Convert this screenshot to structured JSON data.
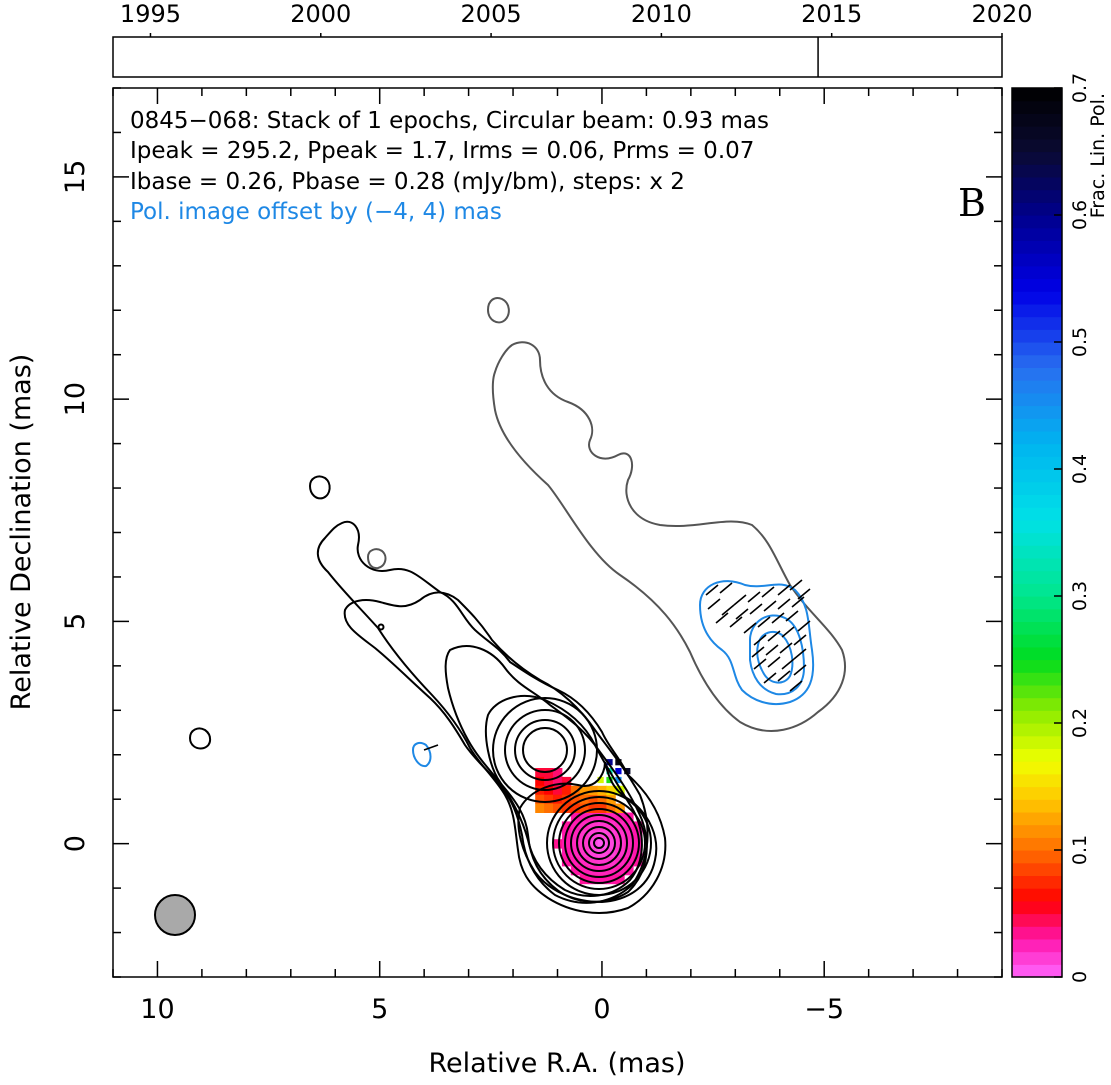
{
  "chart_data": [
    {
      "type": "timeline",
      "x_ticks": [
        "1995",
        "2000",
        "2005",
        "2010",
        "2015",
        "2020"
      ],
      "xlim": [
        1993.9,
        2020
      ],
      "epochs": [
        2014.6
      ]
    },
    {
      "type": "contour",
      "xlabel": "Relative R.A. (mas)",
      "ylabel": "Relative Declination (mas)",
      "xlim": [
        11,
        -9
      ],
      "ylim": [
        -3,
        17
      ],
      "x_ticks": [
        "10",
        "5",
        "0",
        "−5"
      ],
      "y_ticks": [
        "0",
        "5",
        "10",
        "15"
      ],
      "info_lines": [
        "0845−068: Stack of 1 epochs, Circular beam: 0.93 mas",
        "Ipeak = 295.2, Ppeak = 1.7, Irms = 0.06, Prms = 0.07",
        "Ibase = 0.26, Pbase = 0.28 (mJy/bm), steps: x 2",
        "Pol. image offset by (−4, 4) mas"
      ],
      "panel_label": "B",
      "beam_diameter_mas": 0.93,
      "core_position_mas": [
        0,
        0
      ],
      "pol_offset_mas": [
        -4,
        4
      ]
    }
  ],
  "colorbar": {
    "label": "Frac. Lin. Pol.",
    "range": [
      0,
      0.7
    ],
    "ticks": [
      "0",
      "0.1",
      "0.2",
      "0.3",
      "0.4",
      "0.5",
      "0.6",
      "0.7"
    ]
  },
  "colors": {
    "stokes_i": "#000000",
    "lowest_contour": "#555555",
    "pol_contour": "#1e88e5",
    "info_pol_line": "#1e88e5",
    "beam": "#a9a9a9"
  }
}
